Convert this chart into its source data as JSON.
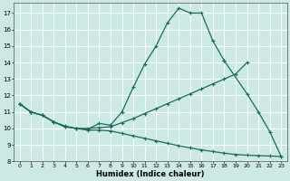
{
  "title": "",
  "xlabel": "Humidex (Indice chaleur)",
  "background_color": "#cce9e5",
  "grid_color": "#ffffff",
  "line_color": "#1a6b5e",
  "xlim": [
    -0.5,
    23.5
  ],
  "ylim": [
    8,
    17.6
  ],
  "xticks": [
    0,
    1,
    2,
    3,
    4,
    5,
    6,
    7,
    8,
    9,
    10,
    11,
    12,
    13,
    14,
    15,
    16,
    17,
    18,
    19,
    20,
    21,
    22,
    23
  ],
  "yticks": [
    8,
    9,
    10,
    11,
    12,
    13,
    14,
    15,
    16,
    17
  ],
  "line1_x": [
    0,
    1,
    2,
    3,
    4,
    5,
    6,
    7,
    8,
    9,
    10,
    11,
    12,
    13,
    14,
    15,
    16,
    17,
    18
  ],
  "line1_y": [
    11.5,
    11.0,
    10.8,
    10.4,
    10.15,
    10.0,
    9.95,
    10.3,
    10.2,
    11.0,
    12.5,
    13.9,
    15.0,
    16.4,
    17.3,
    17.0,
    17.0,
    15.3,
    14.1
  ],
  "line2_x": [
    0,
    1,
    2,
    3,
    4,
    5,
    6,
    7,
    8,
    9,
    10,
    11,
    12,
    13,
    14,
    15,
    16,
    17,
    18,
    19,
    20
  ],
  "line2_y": [
    11.5,
    11.0,
    10.8,
    10.4,
    10.1,
    10.0,
    10.0,
    10.05,
    10.1,
    10.35,
    10.6,
    10.9,
    11.2,
    11.5,
    11.8,
    12.1,
    12.4,
    12.7,
    13.0,
    13.3,
    14.0
  ],
  "line3_x": [
    0,
    1,
    2,
    3,
    4,
    5,
    6,
    7,
    8,
    9,
    10,
    11,
    12,
    13,
    14,
    15,
    16,
    17,
    18,
    19,
    20,
    21,
    22,
    23
  ],
  "line3_y": [
    11.5,
    11.0,
    10.8,
    10.4,
    10.1,
    10.0,
    9.9,
    9.9,
    9.85,
    9.7,
    9.55,
    9.4,
    9.25,
    9.1,
    8.95,
    8.82,
    8.7,
    8.6,
    8.5,
    8.42,
    8.38,
    8.35,
    8.33,
    8.3
  ],
  "line4_x": [
    18,
    20,
    21,
    22,
    23
  ],
  "line4_y": [
    14.1,
    12.1,
    11.0,
    9.8,
    8.3
  ],
  "figsize": [
    3.2,
    2.0
  ],
  "dpi": 100
}
